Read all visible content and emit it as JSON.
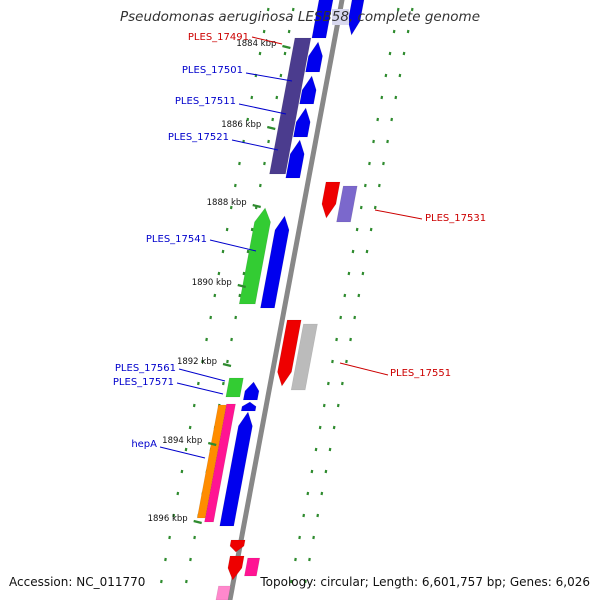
{
  "header": {
    "title_pre": "Pseudomonas aeruginosa LESB",
    "title_hl": "58",
    "title_post": ", complete genome"
  },
  "footer": {
    "accession": "Accession: NC_011770",
    "topology": "Topology: circular; Length: 6,601,757 bp; Genes: 6,026"
  },
  "ruler": {
    "unit": "kbp",
    "ticks": [
      {
        "label": "1884 kbp",
        "kbp": 1884
      },
      {
        "label": "1886 kbp",
        "kbp": 1886
      },
      {
        "label": "1888 kbp",
        "kbp": 1888
      },
      {
        "label": "1890 kbp",
        "kbp": 1890
      },
      {
        "label": "1892 kbp",
        "kbp": 1892
      },
      {
        "label": "1894 kbp",
        "kbp": 1894
      },
      {
        "label": "1896 kbp",
        "kbp": 1896
      }
    ]
  },
  "colors": {
    "backbone": "#888888",
    "tick": "#2e8b2e",
    "label_blue": "#0000cc",
    "label_red": "#cc0000",
    "blue": "#0000ee",
    "purple": "#4b3c8e",
    "green": "#33cc33",
    "red": "#ee0000",
    "lavender": "#7b68cc",
    "gray": "#bbbbbb",
    "orange": "#ff8c00",
    "magenta": "#ff1493",
    "pink": "#ff88cc"
  },
  "genes": [
    {
      "name": "PLES_17491",
      "color": "red"
    },
    {
      "name": "PLES_17501",
      "color": "blue"
    },
    {
      "name": "PLES_17511",
      "color": "blue"
    },
    {
      "name": "PLES_17521",
      "color": "blue"
    },
    {
      "name": "PLES_17531",
      "color": "red"
    },
    {
      "name": "PLES_17541",
      "color": "blue"
    },
    {
      "name": "PLES_17551",
      "color": "red"
    },
    {
      "name": "PLES_17561",
      "color": "blue"
    },
    {
      "name": "PLES_17571",
      "color": "blue"
    },
    {
      "name": "hepA",
      "color": "blue"
    }
  ]
}
